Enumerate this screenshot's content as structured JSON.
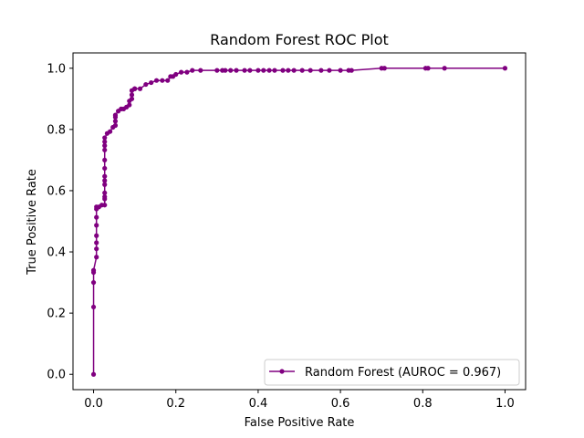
{
  "chart_data": {
    "type": "line",
    "title": "Random Forest ROC Plot",
    "xlabel": "False Positive Rate",
    "ylabel": "True Positive Rate",
    "xlim": [
      -0.05,
      1.05
    ],
    "ylim": [
      -0.05,
      1.05
    ],
    "xticks": [
      0.0,
      0.2,
      0.4,
      0.6,
      0.8,
      1.0
    ],
    "yticks": [
      0.0,
      0.2,
      0.4,
      0.6,
      0.8,
      1.0
    ],
    "xtick_labels": [
      "0.0",
      "0.2",
      "0.4",
      "0.6",
      "0.8",
      "1.0"
    ],
    "ytick_labels": [
      "0.0",
      "0.2",
      "0.4",
      "0.6",
      "0.8",
      "1.0"
    ],
    "grid": false,
    "legend_position": "lower-right",
    "series": [
      {
        "name": "Random Forest (AUROC = 0.967)",
        "color": "#800080",
        "marker": "circle",
        "x": [
          0.0,
          0.0,
          0.0,
          0.0,
          0.0,
          0.007,
          0.007,
          0.007,
          0.007,
          0.007,
          0.007,
          0.007,
          0.007,
          0.013,
          0.02,
          0.027,
          0.027,
          0.027,
          0.027,
          0.027,
          0.027,
          0.027,
          0.027,
          0.027,
          0.027,
          0.027,
          0.027,
          0.027,
          0.033,
          0.04,
          0.047,
          0.053,
          0.053,
          0.053,
          0.053,
          0.06,
          0.067,
          0.073,
          0.08,
          0.087,
          0.087,
          0.093,
          0.093,
          0.093,
          0.1,
          0.1,
          0.113,
          0.127,
          0.14,
          0.153,
          0.167,
          0.18,
          0.187,
          0.193,
          0.2,
          0.213,
          0.227,
          0.24,
          0.26,
          0.3,
          0.313,
          0.32,
          0.333,
          0.347,
          0.367,
          0.38,
          0.4,
          0.413,
          0.427,
          0.44,
          0.46,
          0.473,
          0.487,
          0.507,
          0.527,
          0.553,
          0.573,
          0.6,
          0.62,
          0.627,
          0.7,
          0.707,
          0.807,
          0.813,
          0.853,
          1.0
        ],
        "y": [
          0.0,
          0.22,
          0.3,
          0.333,
          0.34,
          0.383,
          0.41,
          0.43,
          0.453,
          0.487,
          0.513,
          0.54,
          0.547,
          0.547,
          0.553,
          0.553,
          0.573,
          0.58,
          0.593,
          0.62,
          0.633,
          0.647,
          0.673,
          0.7,
          0.733,
          0.747,
          0.76,
          0.773,
          0.787,
          0.793,
          0.807,
          0.813,
          0.827,
          0.84,
          0.847,
          0.86,
          0.867,
          0.867,
          0.873,
          0.88,
          0.893,
          0.9,
          0.913,
          0.927,
          0.933,
          0.933,
          0.933,
          0.947,
          0.953,
          0.96,
          0.96,
          0.96,
          0.973,
          0.973,
          0.98,
          0.987,
          0.987,
          0.993,
          0.993,
          0.993,
          0.993,
          0.993,
          0.993,
          0.993,
          0.993,
          0.993,
          0.993,
          0.993,
          0.993,
          0.993,
          0.993,
          0.993,
          0.993,
          0.993,
          0.993,
          0.993,
          0.993,
          0.993,
          0.993,
          0.993,
          1.0,
          1.0,
          1.0,
          1.0,
          1.0,
          1.0
        ]
      }
    ]
  }
}
